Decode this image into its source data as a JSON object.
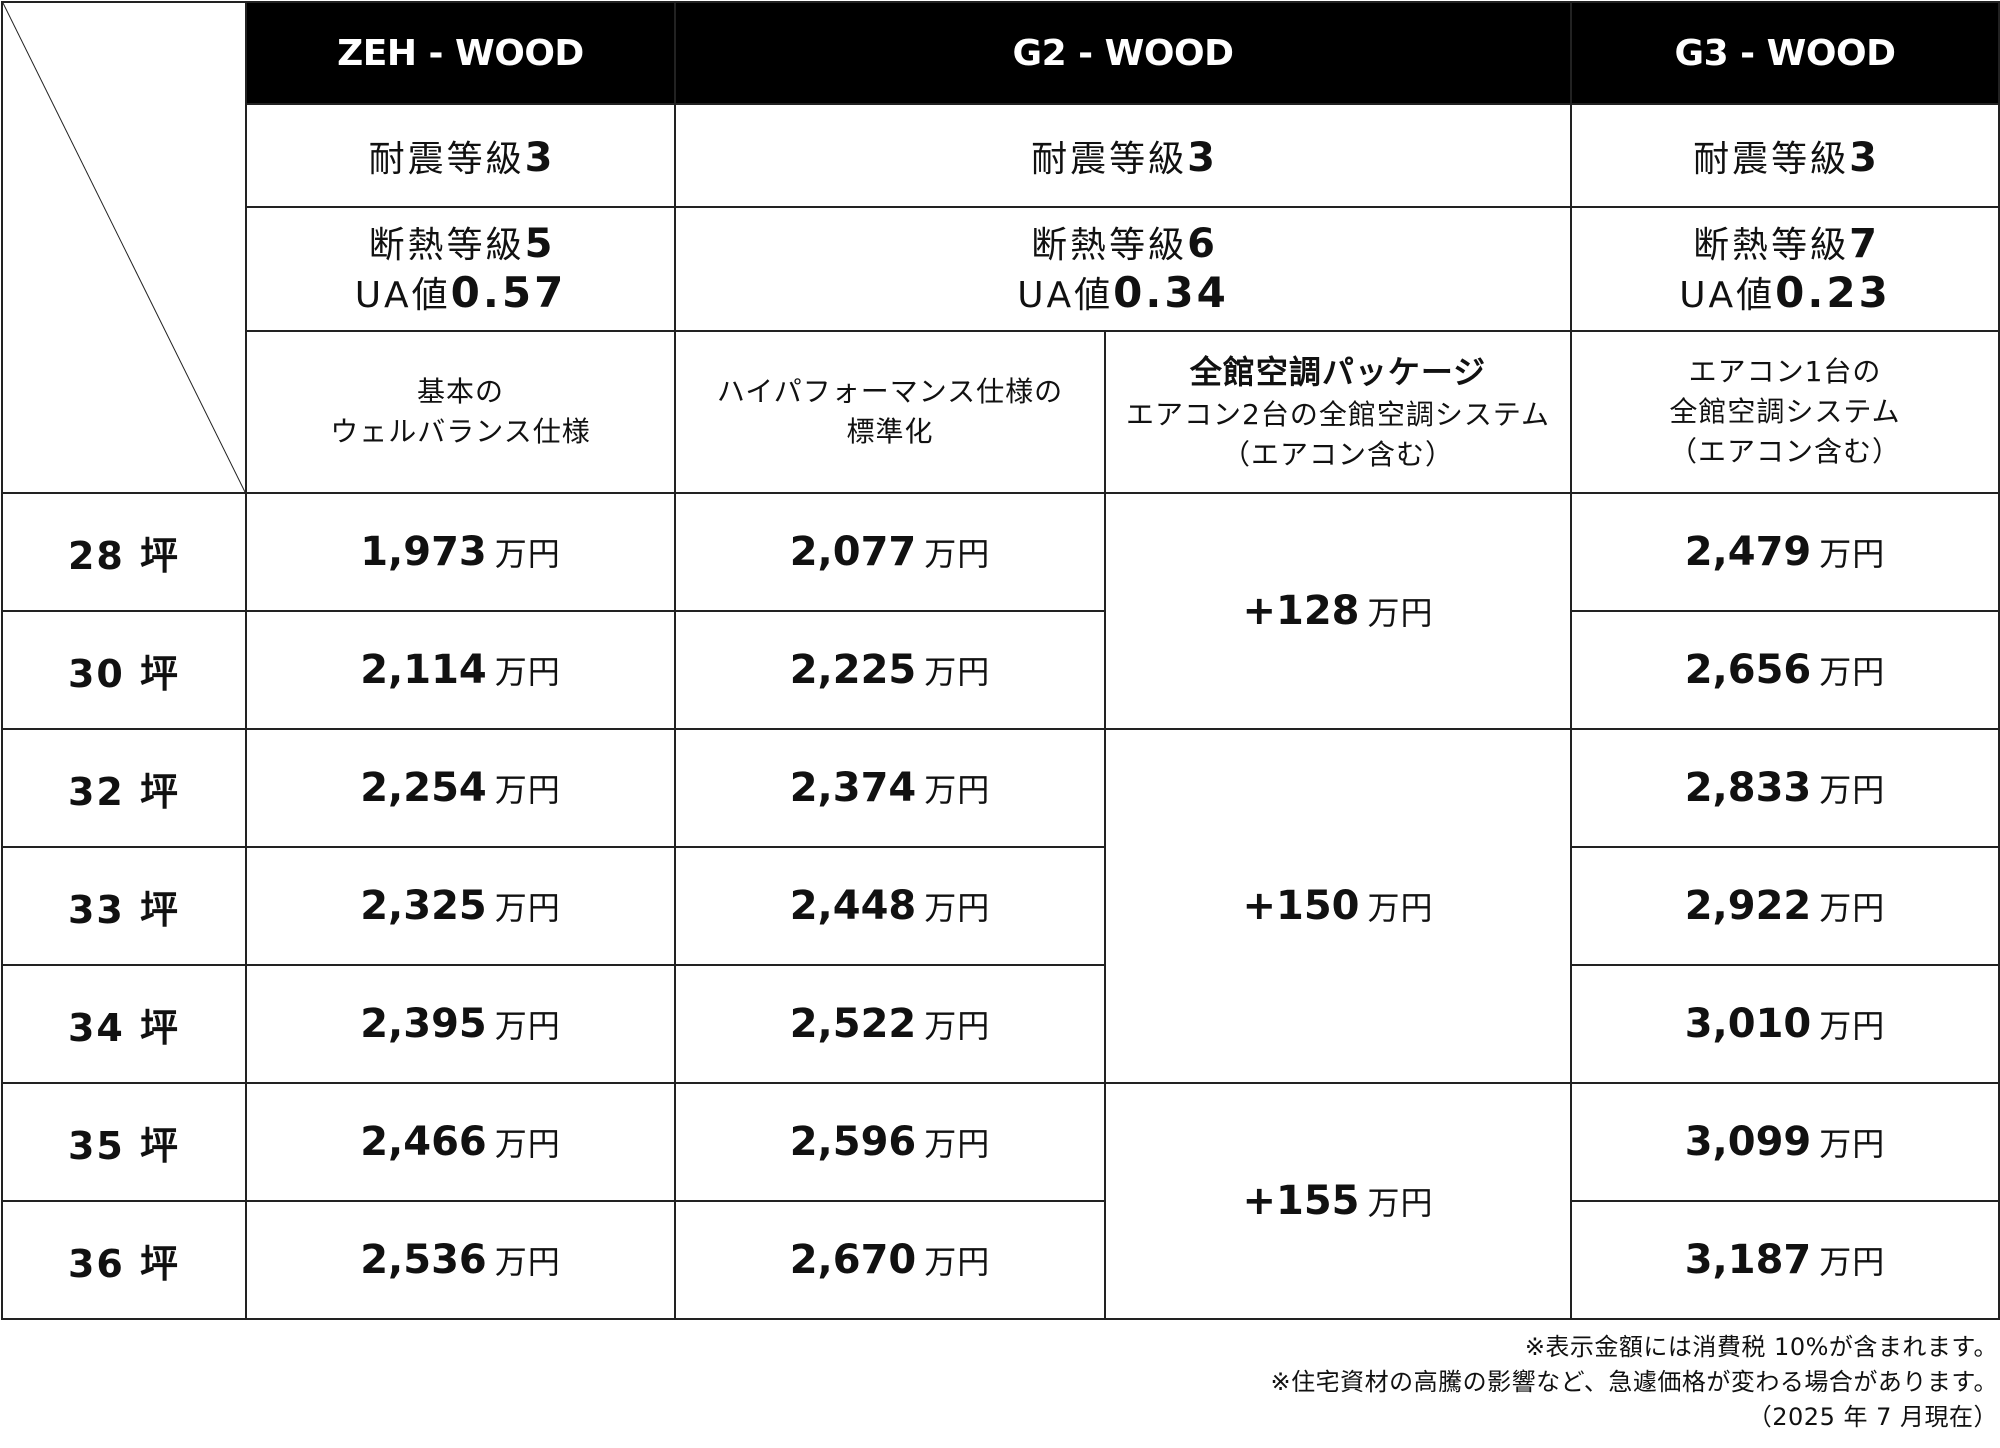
{
  "plans": [
    "ZEH - WOOD",
    "G2 - WOOD",
    "G3 - WOOD"
  ],
  "seismic": [
    {
      "label": "耐震等級",
      "grade": "3"
    },
    {
      "label": "耐震等級",
      "grade": "3"
    },
    {
      "label": "耐震等級",
      "grade": "3"
    }
  ],
  "insulation": [
    {
      "label": "断熱等級",
      "grade": "5",
      "ua_label": "UA値",
      "ua_value": "0.57"
    },
    {
      "label": "断熱等級",
      "grade": "6",
      "ua_label": "UA値",
      "ua_value": "0.34"
    },
    {
      "label": "断熱等級",
      "grade": "7",
      "ua_label": "UA値",
      "ua_value": "0.23"
    }
  ],
  "specs": {
    "zeh": {
      "line1": "基本の",
      "line2": "ウェルバランス仕様"
    },
    "g2_standard": {
      "line1": "ハイパフォーマンス仕様の",
      "line2": "標準化"
    },
    "g2_package": {
      "title": "全館空調パッケージ",
      "line1": "エアコン2台の全館空調システム",
      "line2": "（エアコン含む）"
    },
    "g3": {
      "line1": "エアコン1台の",
      "line2": "全館空調システム",
      "line3": "（エアコン含む）"
    }
  },
  "unit": "万円",
  "rows": [
    {
      "size": "28 坪",
      "zeh": "1,973",
      "g2": "2,077",
      "g3": "2,479"
    },
    {
      "size": "30 坪",
      "zeh": "2,114",
      "g2": "2,225",
      "g3": "2,656"
    },
    {
      "size": "32 坪",
      "zeh": "2,254",
      "g2": "2,374",
      "g3": "2,833"
    },
    {
      "size": "33 坪",
      "zeh": "2,325",
      "g2": "2,448",
      "g3": "2,922"
    },
    {
      "size": "34 坪",
      "zeh": "2,395",
      "g2": "2,522",
      "g3": "3,010"
    },
    {
      "size": "35 坪",
      "zeh": "2,466",
      "g2": "2,596",
      "g3": "3,099"
    },
    {
      "size": "36 坪",
      "zeh": "2,536",
      "g2": "2,670",
      "g3": "3,187"
    }
  ],
  "packages": [
    "+128",
    "+150",
    "+155"
  ],
  "notes": [
    "※表示金額には消費税 10%が含まれます。",
    "※住宅資材の高騰の影響など、急遽価格が変わる場合があります。",
    "（2025 年 7 月現在）"
  ]
}
